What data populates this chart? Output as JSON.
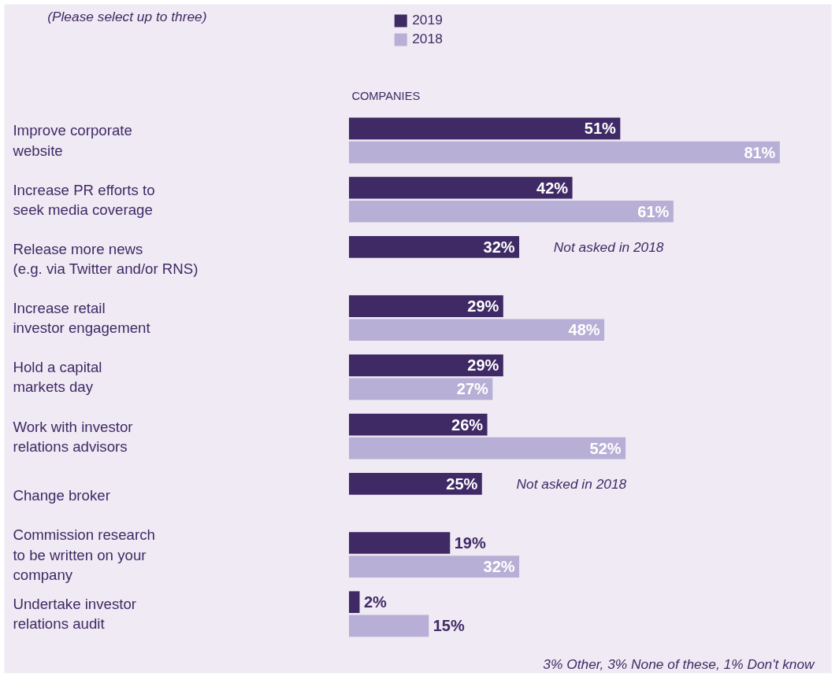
{
  "chart_data": {
    "type": "bar",
    "orientation": "horizontal",
    "categories": [
      "Improve corporate\nwebsite",
      "Increase PR efforts to\nseek media coverage",
      "Release more news\n(e.g. via Twitter and/or RNS)",
      "Increase retail\ninvestor engagement",
      "Hold a capital\nmarkets day",
      "Work with investor\nrelations advisors",
      "Change broker",
      "Commission research\nto be written on your\ncompany",
      "Undertake investor\nrelations audit"
    ],
    "series": [
      {
        "name": "2019",
        "color": "#3f2a66",
        "values": [
          51,
          42,
          32,
          29,
          29,
          26,
          25,
          19,
          2
        ],
        "value_labels": [
          "51%",
          "42%",
          "32%",
          "29%",
          "29%",
          "26%",
          "25%",
          "19%",
          "2%"
        ]
      },
      {
        "name": "2018",
        "color": "#b8afd6",
        "values": [
          81,
          61,
          null,
          48,
          27,
          52,
          null,
          32,
          15
        ],
        "value_labels": [
          "81%",
          "61%",
          null,
          "48%",
          "27%",
          "52%",
          null,
          "32%",
          "15%"
        ]
      }
    ],
    "legend": "top",
    "grid": false,
    "annotations": [
      "(Please select up to three)",
      "COMPANIES",
      "3% Other, 3% None of these, 1% Don't know",
      "Not asked in 2018",
      "Not asked in 2018"
    ]
  }
}
